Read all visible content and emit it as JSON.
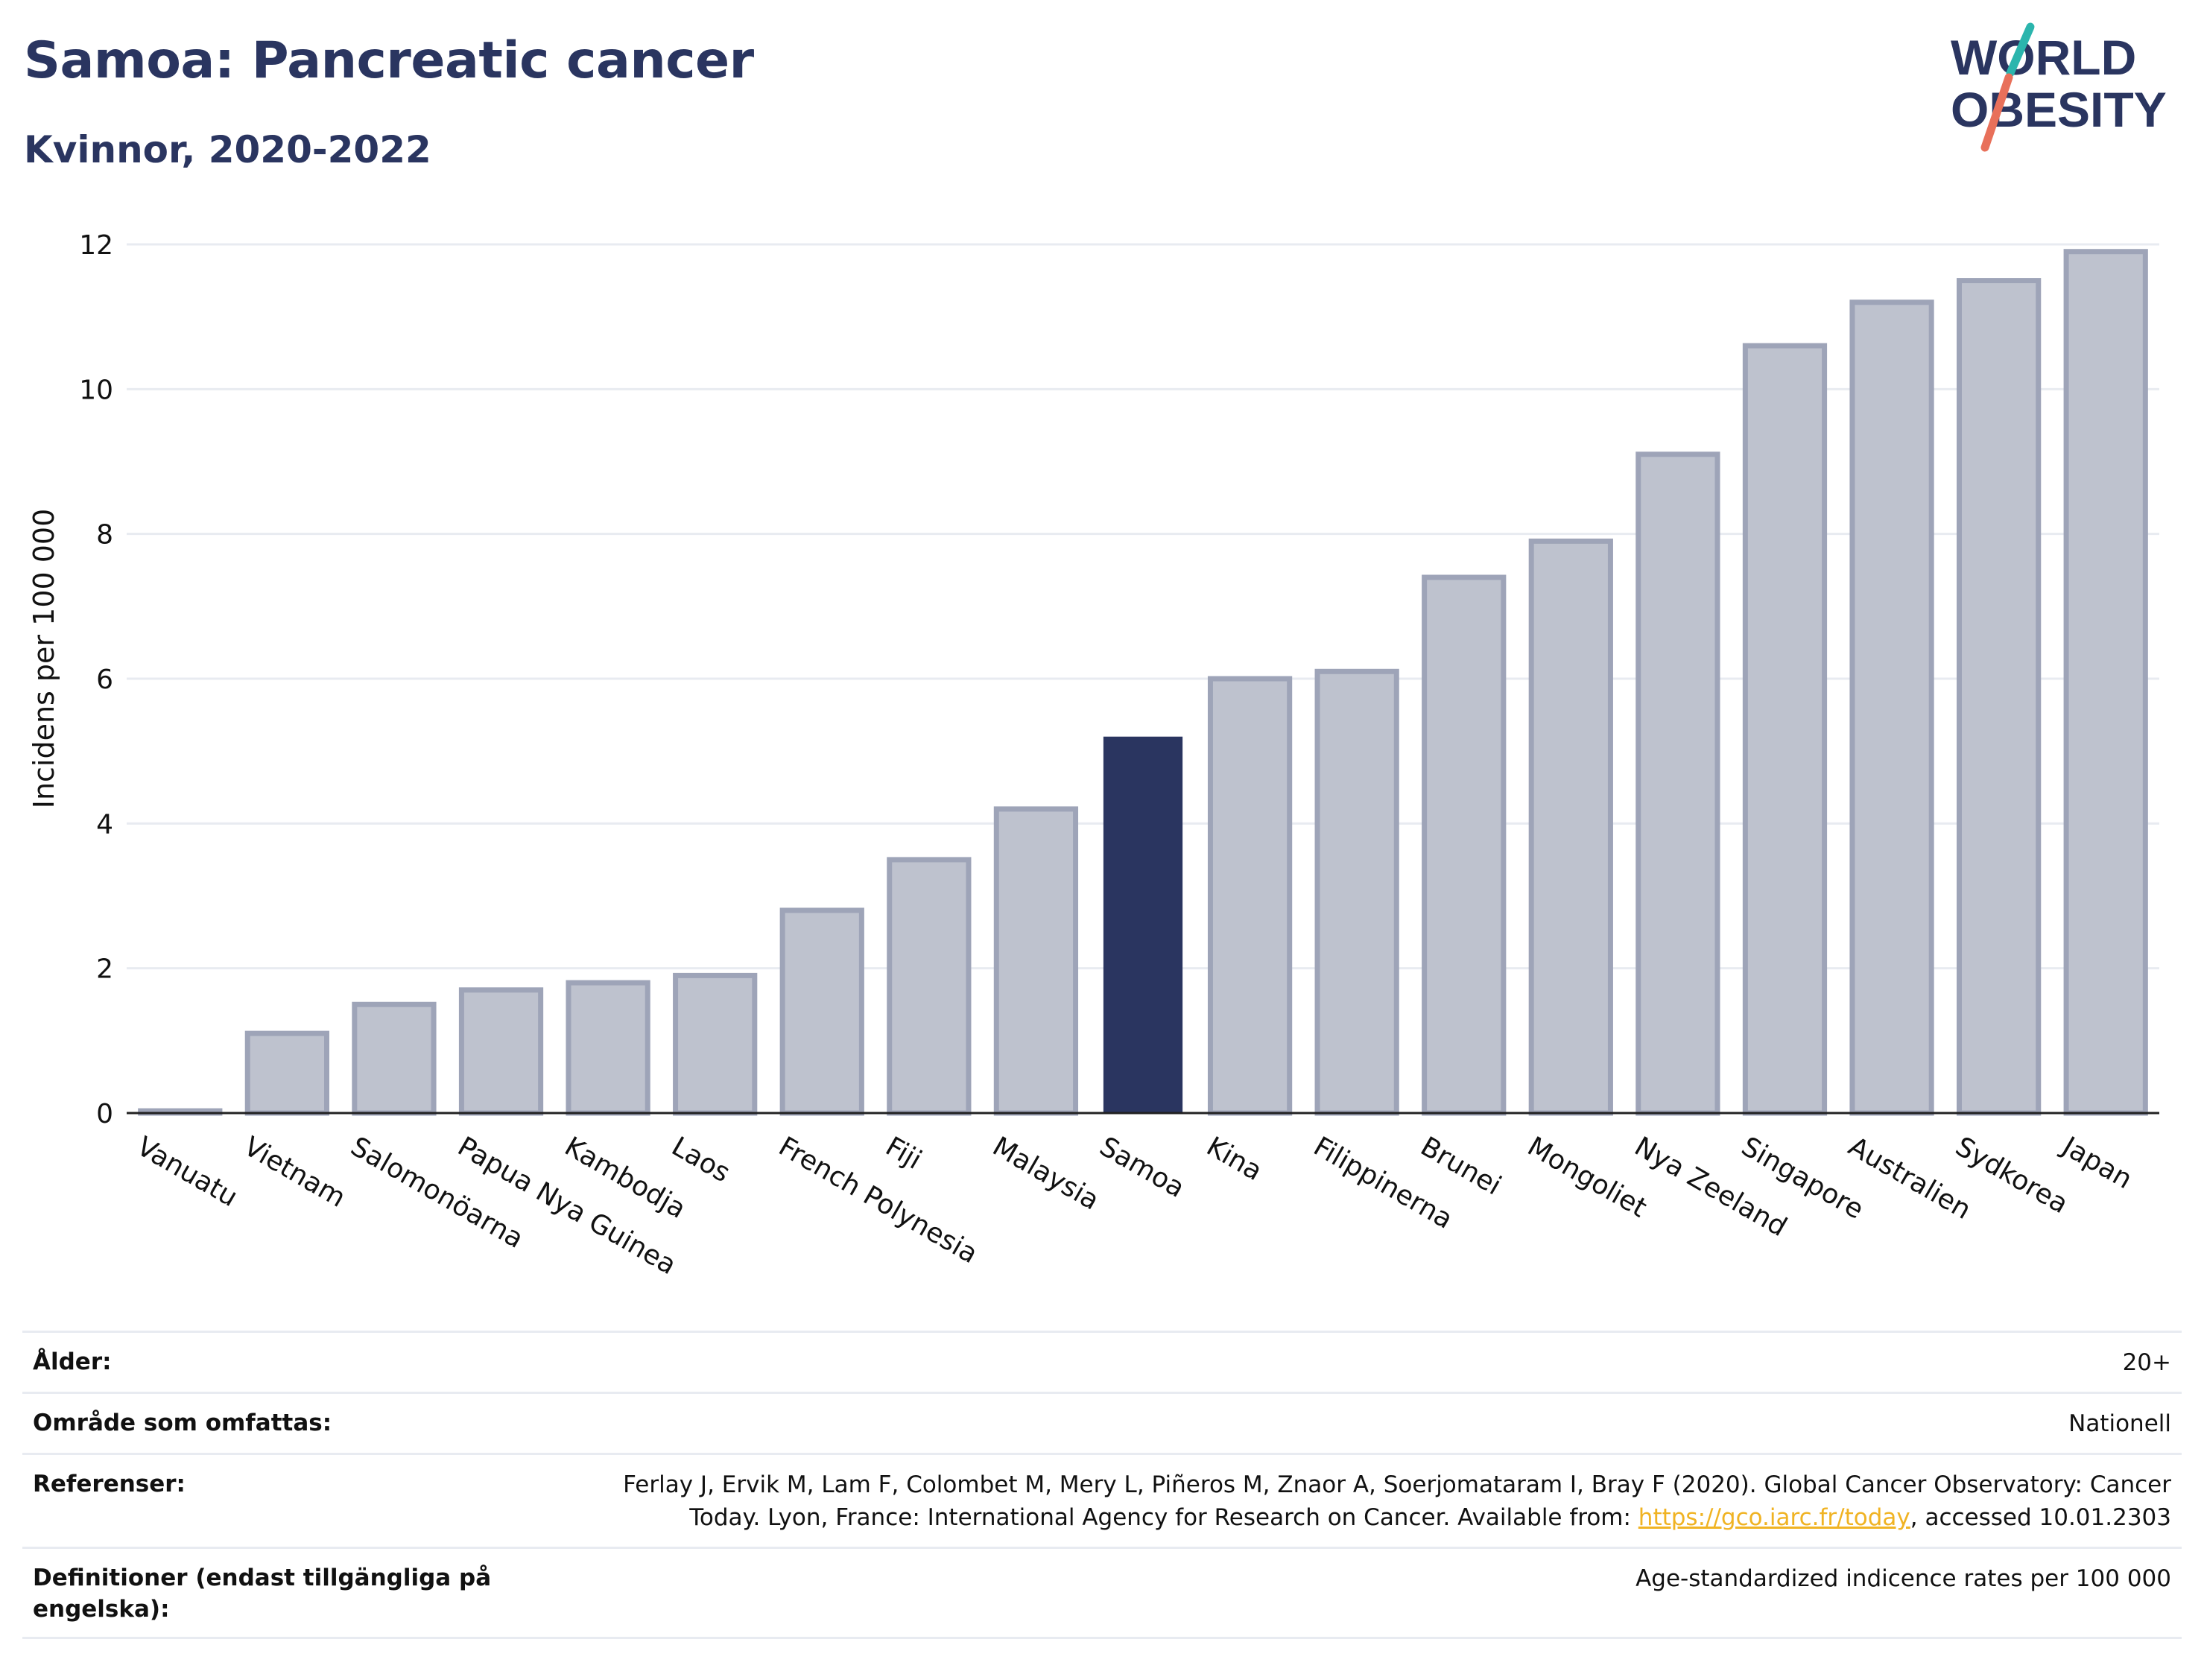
{
  "header": {
    "title": "Samoa: Pancreatic cancer",
    "subtitle": "Kvinnor, 2020-2022"
  },
  "logo": {
    "line1": "WORLD",
    "line2": "OBESITY",
    "colors": {
      "text": "#2a3560",
      "slash_top": "#2bb5ad",
      "slash_bottom": "#e8705a"
    }
  },
  "colors": {
    "highlight_bar": "#2a3560",
    "other_bar_fill": "#bec2ce",
    "other_bar_stroke": "#9ea4b8",
    "grid": "#e8ebf1",
    "axis_text": "#111111",
    "link": "#f0b323"
  },
  "chart_data": {
    "type": "bar",
    "title": "Samoa: Pancreatic cancer",
    "subtitle": "Kvinnor, 2020-2022",
    "xlabel": "",
    "ylabel": "Incidens per 100 000",
    "ylim": [
      0,
      12.4
    ],
    "yticks": [
      0,
      2,
      4,
      6,
      8,
      10,
      12
    ],
    "grid": true,
    "highlight": "Samoa",
    "categories": [
      "Vanuatu",
      "Vietnam",
      "Salomonöarna",
      "Papua Nya Guinea",
      "Kambodja",
      "Laos",
      "French Polynesia",
      "Fiji",
      "Malaysia",
      "Samoa",
      "Kina",
      "Filippinerna",
      "Brunei",
      "Mongoliet",
      "Nya Zeeland",
      "Singapore",
      "Australien",
      "Sydkorea",
      "Japan"
    ],
    "values": [
      0.03,
      1.1,
      1.5,
      1.7,
      1.8,
      1.9,
      2.8,
      3.5,
      4.2,
      5.2,
      6.0,
      6.1,
      7.4,
      7.9,
      9.1,
      10.6,
      11.2,
      11.5,
      11.9
    ]
  },
  "info": {
    "rows": [
      {
        "label": "Ålder:",
        "value": "20+"
      },
      {
        "label": "Område som omfattas:",
        "value": "Nationell"
      },
      {
        "label": "Referenser:",
        "value_part1": "Ferlay J, Ervik M, Lam F, Colombet M, Mery L, Piñeros M, Znaor A, Soerjomataram I, Bray F (2020). Global Cancer Observatory: Cancer Today. Lyon, France: International Agency for Research on Cancer. Available from: ",
        "link_text": "https://gco.iarc.fr/today",
        "value_part2": ", accessed 10.01.2303"
      },
      {
        "label": "Definitioner (endast tillgängliga på engelska):",
        "value": "Age-standardized indicence rates per 100 000"
      }
    ]
  }
}
